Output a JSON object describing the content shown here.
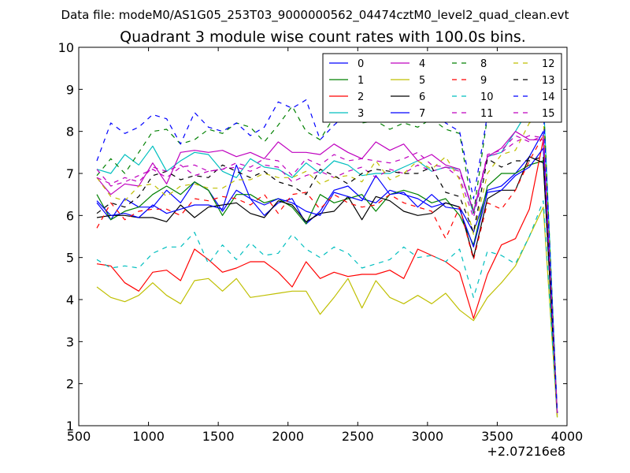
{
  "header": {
    "supertitle": "Data file: modeM0/AS1G05_253T03_9000000562_04474cztM0_level2_quad_clean.evt"
  },
  "chart_data": {
    "type": "line",
    "title": "Quadrant 3 module wise count rates with 100.0s bins.",
    "xlabel": "",
    "ylabel": "",
    "x_offset_label": "+2.07216e8",
    "xlim": [
      500,
      4000
    ],
    "ylim": [
      1,
      10
    ],
    "xticks": [
      "500",
      "1000",
      "1500",
      "2000",
      "2500",
      "3000",
      "3500",
      "4000"
    ],
    "yticks": [
      "1",
      "2",
      "3",
      "4",
      "5",
      "6",
      "7",
      "8",
      "9",
      "10"
    ],
    "grid": false,
    "legend_position": "top-right",
    "x": [
      630,
      730,
      830,
      930,
      1030,
      1130,
      1230,
      1330,
      1430,
      1530,
      1630,
      1730,
      1830,
      1930,
      2030,
      2130,
      2230,
      2330,
      2430,
      2530,
      2630,
      2730,
      2830,
      2930,
      3030,
      3130,
      3230,
      3330,
      3430,
      3530,
      3630,
      3730,
      3830,
      3930
    ],
    "series": [
      {
        "name": "0",
        "color": "#0000ff",
        "dash": "solid",
        "values": [
          6.3,
          5.9,
          6.4,
          6.2,
          6.2,
          6.6,
          6.3,
          6.8,
          6.6,
          6.1,
          6.6,
          6.4,
          6.0,
          6.3,
          6.4,
          5.8,
          6.1,
          6.6,
          6.7,
          6.4,
          6.3,
          6.6,
          6.5,
          6.4,
          6.2,
          6.3,
          6.2,
          5.6,
          6.6,
          6.7,
          7.0,
          7.4,
          8.0,
          1.3
        ]
      },
      {
        "name": "1",
        "color": "#008000",
        "dash": "solid",
        "values": [
          6.5,
          5.9,
          6.1,
          6.2,
          6.5,
          6.7,
          6.5,
          6.8,
          6.6,
          6.0,
          6.5,
          6.5,
          6.3,
          6.4,
          6.2,
          5.8,
          6.5,
          6.3,
          6.4,
          6.5,
          6.1,
          6.5,
          6.6,
          6.5,
          6.3,
          6.4,
          6.0,
          5.3,
          6.7,
          7.0,
          7.0,
          7.2,
          7.3,
          1.2
        ]
      },
      {
        "name": "2",
        "color": "#ff0000",
        "dash": "solid",
        "values": [
          4.85,
          4.8,
          4.4,
          4.2,
          4.65,
          4.7,
          4.45,
          5.2,
          4.95,
          4.65,
          4.75,
          4.9,
          4.9,
          4.65,
          4.3,
          4.9,
          4.5,
          4.65,
          4.55,
          4.6,
          4.6,
          4.7,
          4.5,
          5.2,
          5.05,
          4.9,
          4.65,
          3.55,
          4.6,
          5.3,
          5.45,
          6.15,
          7.8,
          1.25
        ]
      },
      {
        "name": "3",
        "color": "#00bfbf",
        "dash": "solid",
        "values": [
          7.1,
          7.0,
          7.45,
          7.2,
          7.65,
          7.05,
          7.3,
          7.5,
          7.45,
          7.05,
          6.9,
          7.35,
          7.15,
          7.1,
          6.9,
          7.25,
          7.0,
          7.3,
          7.2,
          6.95,
          7.0,
          7.0,
          7.15,
          7.3,
          7.05,
          7.15,
          7.1,
          6.05,
          7.4,
          7.5,
          8.0,
          8.55,
          8.85,
          1.3
        ]
      },
      {
        "name": "4",
        "color": "#bf00bf",
        "dash": "solid",
        "values": [
          6.9,
          6.5,
          6.75,
          6.7,
          7.25,
          6.75,
          7.5,
          7.55,
          7.5,
          7.55,
          7.4,
          7.5,
          7.35,
          7.75,
          7.5,
          7.5,
          7.45,
          7.7,
          7.5,
          7.35,
          7.75,
          7.55,
          7.7,
          7.3,
          7.45,
          7.2,
          7.1,
          6.1,
          7.4,
          7.6,
          8.0,
          7.8,
          7.8,
          1.3
        ]
      },
      {
        "name": "5",
        "color": "#bfbf00",
        "dash": "solid",
        "values": [
          4.3,
          4.05,
          3.95,
          4.1,
          4.4,
          4.1,
          3.9,
          4.45,
          4.5,
          4.2,
          4.5,
          4.05,
          4.1,
          4.15,
          4.2,
          4.2,
          3.65,
          4.05,
          4.5,
          3.8,
          4.45,
          4.05,
          3.9,
          4.1,
          3.9,
          4.15,
          3.75,
          3.5,
          4.05,
          4.4,
          4.8,
          5.5,
          6.2,
          1.2
        ]
      },
      {
        "name": "6",
        "color": "#000000",
        "dash": "solid",
        "values": [
          5.95,
          6.0,
          6.0,
          5.95,
          5.95,
          5.85,
          6.25,
          5.95,
          6.2,
          6.25,
          6.3,
          6.05,
          5.95,
          6.35,
          6.25,
          5.85,
          6.05,
          6.1,
          6.45,
          5.9,
          6.45,
          6.35,
          6.1,
          6.0,
          6.05,
          6.3,
          6.2,
          5.0,
          6.4,
          6.6,
          6.6,
          7.4,
          7.25,
          1.3
        ]
      },
      {
        "name": "7",
        "color": "#0000ff",
        "dash": "solid",
        "values": [
          6.35,
          6.0,
          6.05,
          5.95,
          6.25,
          6.05,
          6.15,
          6.25,
          6.25,
          6.15,
          7.2,
          6.4,
          6.25,
          6.4,
          6.3,
          6.1,
          6.0,
          6.55,
          6.45,
          6.35,
          6.95,
          6.5,
          6.55,
          6.2,
          6.5,
          6.2,
          6.15,
          5.25,
          6.55,
          6.6,
          6.95,
          7.15,
          7.6,
          1.3
        ]
      },
      {
        "name": "8",
        "color": "#008000",
        "dash": "dashed",
        "values": [
          6.95,
          7.35,
          7.0,
          7.5,
          8.0,
          8.05,
          7.7,
          7.8,
          8.05,
          7.95,
          8.2,
          8.1,
          7.75,
          8.15,
          8.6,
          8.0,
          7.8,
          8.35,
          8.5,
          8.2,
          8.25,
          8.05,
          8.2,
          8.1,
          8.3,
          8.05,
          7.95,
          6.05,
          8.35,
          8.5,
          8.4,
          8.6,
          8.8,
          1.3
        ]
      },
      {
        "name": "9",
        "color": "#ff0000",
        "dash": "dashed",
        "values": [
          5.7,
          6.3,
          5.9,
          6.1,
          6.15,
          6.15,
          6.0,
          6.4,
          6.35,
          6.45,
          6.4,
          6.25,
          6.5,
          6.05,
          6.5,
          6.55,
          6.15,
          6.5,
          6.3,
          6.2,
          6.25,
          6.5,
          6.3,
          6.2,
          6.1,
          5.45,
          6.2,
          4.95,
          6.3,
          6.15,
          6.6,
          7.3,
          7.9,
          1.3
        ]
      },
      {
        "name": "10",
        "color": "#00bfbf",
        "dash": "dashed",
        "values": [
          4.95,
          4.75,
          4.8,
          4.75,
          5.1,
          5.25,
          5.25,
          5.6,
          4.85,
          5.3,
          4.95,
          5.35,
          5.05,
          5.1,
          5.55,
          5.2,
          5.0,
          5.25,
          5.1,
          4.75,
          4.85,
          4.95,
          5.25,
          5.0,
          5.05,
          4.9,
          5.2,
          4.05,
          5.15,
          5.05,
          4.85,
          5.5,
          6.35,
          1.25
        ]
      },
      {
        "name": "11",
        "color": "#bf00bf",
        "dash": "dashed",
        "values": [
          7.1,
          6.7,
          6.8,
          6.95,
          7.1,
          6.9,
          7.15,
          7.2,
          7.05,
          7.1,
          7.15,
          7.05,
          7.2,
          7.15,
          6.8,
          6.95,
          7.05,
          6.9,
          7.05,
          7.15,
          6.9,
          7.1,
          7.0,
          7.2,
          7.05,
          7.15,
          6.9,
          5.95,
          7.4,
          7.5,
          7.75,
          7.9,
          7.85,
          1.3
        ]
      },
      {
        "name": "12",
        "color": "#bfbf00",
        "dash": "dashed",
        "values": [
          6.9,
          6.45,
          6.35,
          6.7,
          6.75,
          6.45,
          6.7,
          6.75,
          6.65,
          6.65,
          6.85,
          6.85,
          7.0,
          6.9,
          6.9,
          7.05,
          6.75,
          6.9,
          6.95,
          6.8,
          7.3,
          6.85,
          7.0,
          7.3,
          7.1,
          7.4,
          6.85,
          5.55,
          7.0,
          7.45,
          7.55,
          8.2,
          8.35,
          1.2
        ]
      },
      {
        "name": "13",
        "color": "#000000",
        "dash": "dashed",
        "values": [
          6.05,
          6.3,
          6.2,
          6.45,
          6.95,
          7.05,
          6.85,
          6.95,
          6.9,
          7.2,
          7.05,
          6.9,
          7.05,
          6.8,
          6.7,
          6.5,
          7.1,
          6.95,
          6.75,
          7.0,
          7.1,
          7.05,
          7.0,
          7.0,
          7.15,
          6.55,
          6.45,
          5.6,
          7.35,
          7.15,
          7.3,
          7.3,
          7.4,
          1.3
        ]
      },
      {
        "name": "14",
        "color": "#0000ff",
        "dash": "dashed",
        "values": [
          7.3,
          8.2,
          7.95,
          8.1,
          8.4,
          8.3,
          7.7,
          8.45,
          8.1,
          8.0,
          8.2,
          7.9,
          8.1,
          8.7,
          8.55,
          8.75,
          7.8,
          8.15,
          8.45,
          8.55,
          8.55,
          8.25,
          8.55,
          8.4,
          8.5,
          8.2,
          8.0,
          6.4,
          8.4,
          8.3,
          8.55,
          8.6,
          8.6,
          1.3
        ]
      },
      {
        "name": "15",
        "color": "#bf00bf",
        "dash": "dashed",
        "values": [
          6.9,
          6.75,
          6.9,
          6.8,
          7.15,
          7.05,
          7.2,
          6.95,
          7.05,
          7.1,
          7.25,
          7.15,
          7.35,
          7.3,
          6.95,
          7.35,
          7.2,
          7.45,
          7.3,
          7.35,
          7.3,
          7.25,
          7.35,
          7.5,
          7.2,
          7.15,
          7.05,
          6.1,
          7.45,
          7.55,
          7.9,
          7.75,
          7.9,
          1.3
        ]
      }
    ]
  }
}
